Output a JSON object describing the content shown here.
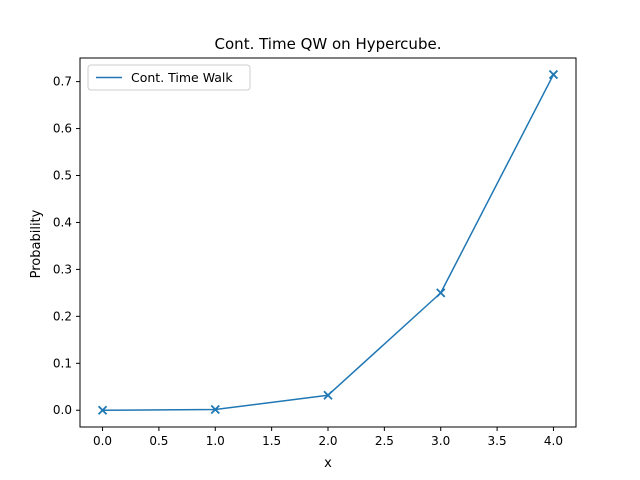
{
  "chart_data": {
    "type": "line",
    "title": "Cont. Time QW on Hypercube.",
    "xlabel": "x",
    "ylabel": "Probability",
    "xlim": [
      -0.2,
      4.2
    ],
    "ylim": [
      -0.0357,
      0.7503
    ],
    "xticks": [
      0.0,
      0.5,
      1.0,
      1.5,
      2.0,
      2.5,
      3.0,
      3.5,
      4.0
    ],
    "xtick_labels": [
      "0.0",
      "0.5",
      "1.0",
      "1.5",
      "2.0",
      "2.5",
      "3.0",
      "3.5",
      "4.0"
    ],
    "yticks": [
      0.0,
      0.1,
      0.2,
      0.3,
      0.4,
      0.5,
      0.6,
      0.7
    ],
    "ytick_labels": [
      "0.0",
      "0.1",
      "0.2",
      "0.3",
      "0.4",
      "0.5",
      "0.6",
      "0.7"
    ],
    "grid": false,
    "legend_position": "top-left",
    "series": [
      {
        "name": "Cont. Time Walk",
        "color": "#1f77b4",
        "marker": "x",
        "x": [
          0,
          1,
          2,
          3,
          4
        ],
        "y": [
          0.0,
          0.0015,
          0.032,
          0.25,
          0.715
        ]
      }
    ]
  }
}
